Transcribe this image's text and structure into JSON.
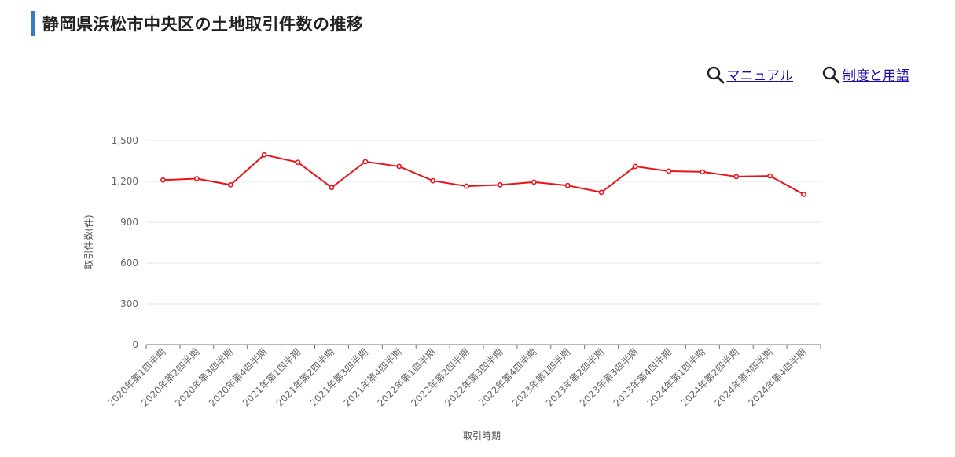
{
  "header": {
    "title": "静岡県浜松市中央区の土地取引件数の推移"
  },
  "links": [
    {
      "label": "マニュアル",
      "icon": "search-icon"
    },
    {
      "label": "制度と用語",
      "icon": "search-icon"
    }
  ],
  "chart_data": {
    "type": "line",
    "xlabel": "取引時期",
    "ylabel": "取引件数(件)",
    "ylim": [
      0,
      1500
    ],
    "yticks": [
      0,
      300,
      600,
      900,
      1200,
      1500
    ],
    "ytick_labels": [
      "0",
      "300",
      "600",
      "900",
      "1,200",
      "1,500"
    ],
    "grid": true,
    "line_color": "#e8141b",
    "categories": [
      "2020年第1四半期",
      "2020年第2四半期",
      "2020年第3四半期",
      "2020年第4四半期",
      "2021年第1四半期",
      "2021年第2四半期",
      "2021年第3四半期",
      "2021年第4四半期",
      "2022年第1四半期",
      "2022年第2四半期",
      "2022年第3四半期",
      "2022年第4四半期",
      "2023年第1四半期",
      "2023年第2四半期",
      "2023年第3四半期",
      "2023年第4四半期",
      "2024年第1四半期",
      "2024年第2四半期",
      "2024年第3四半期",
      "2024年第4四半期"
    ],
    "series": [
      {
        "values": [
          1210,
          1220,
          1175,
          1395,
          1340,
          1155,
          1345,
          1310,
          1205,
          1165,
          1175,
          1195,
          1170,
          1120,
          1310,
          1275,
          1270,
          1235,
          1240,
          1105
        ]
      }
    ]
  }
}
